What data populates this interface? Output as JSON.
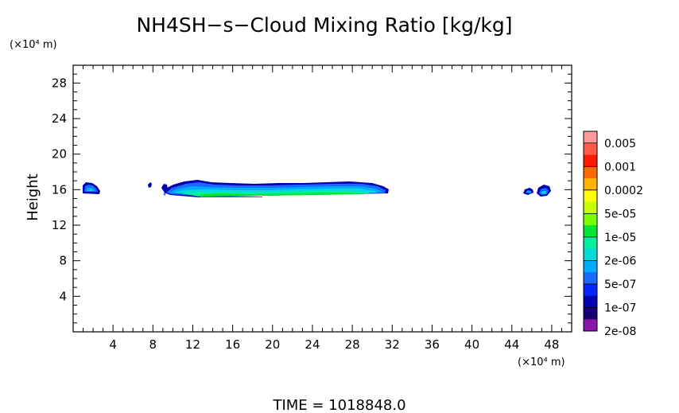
{
  "chart_data": {
    "type": "heatmap",
    "title": "NH4SH−s−Cloud Mixing Ratio [kg/kg]",
    "ylabel": "Height",
    "xunit": "(×10⁴ m)",
    "yunit": "(×10⁴ m)",
    "xlim": [
      0,
      50
    ],
    "ylim": [
      0,
      30
    ],
    "xticks": [
      4,
      8,
      12,
      16,
      20,
      24,
      28,
      32,
      36,
      40,
      44,
      48
    ],
    "yticks": [
      4,
      8,
      12,
      16,
      20,
      24,
      28
    ],
    "footer": "TIME  =  1018848.0",
    "colorbar": {
      "labels": [
        "0.005",
        "0.001",
        "0.0002",
        "5e-05",
        "1e-05",
        "2e-06",
        "5e-07",
        "1e-07",
        "2e-08"
      ],
      "colors": [
        "#ff9a9a",
        "#ff5a4a",
        "#ff1a00",
        "#ff6a00",
        "#ffb400",
        "#ffff00",
        "#c8ff00",
        "#78ff00",
        "#00e632",
        "#00f0a0",
        "#00dcdc",
        "#00aaff",
        "#1a6aff",
        "#0028ff",
        "#0000b4",
        "#1a006e",
        "#8c14aa"
      ]
    },
    "cloud_features": [
      {
        "x_range": [
          1.2,
          2.8
        ],
        "y_range": [
          15.3,
          16.7
        ],
        "max_level": "2e-06"
      },
      {
        "x_range": [
          9.0,
          32.3
        ],
        "y_range": [
          15.0,
          17.0
        ],
        "max_level": "1e-05"
      },
      {
        "x_range": [
          46.2,
          48.2
        ],
        "y_range": [
          15.2,
          16.4
        ],
        "max_level": "2e-06"
      }
    ]
  }
}
